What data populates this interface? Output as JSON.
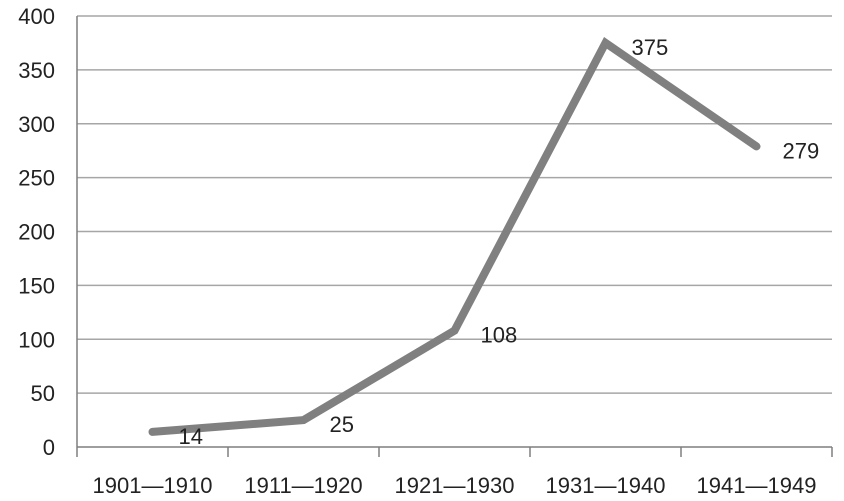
{
  "chart_data": {
    "type": "line",
    "title": "",
    "xlabel": "",
    "ylabel": "",
    "categories": [
      "1901—1910",
      "1911—1920",
      "1921—1930",
      "1931—1940",
      "1941—1949"
    ],
    "series": [
      {
        "values": [
          14,
          25,
          108,
          375,
          279
        ]
      }
    ],
    "data_labels": [
      "14",
      "25",
      "108",
      "375",
      "279"
    ],
    "y_ticks": [
      "0",
      "50",
      "100",
      "150",
      "200",
      "250",
      "300",
      "350",
      "400"
    ],
    "ylim": [
      0,
      400
    ],
    "grid": true,
    "legend": "none",
    "colors": {
      "line": "#808080",
      "grid": "#a6a6a6",
      "axis": "#7f7f7f",
      "text": "#222222"
    }
  }
}
